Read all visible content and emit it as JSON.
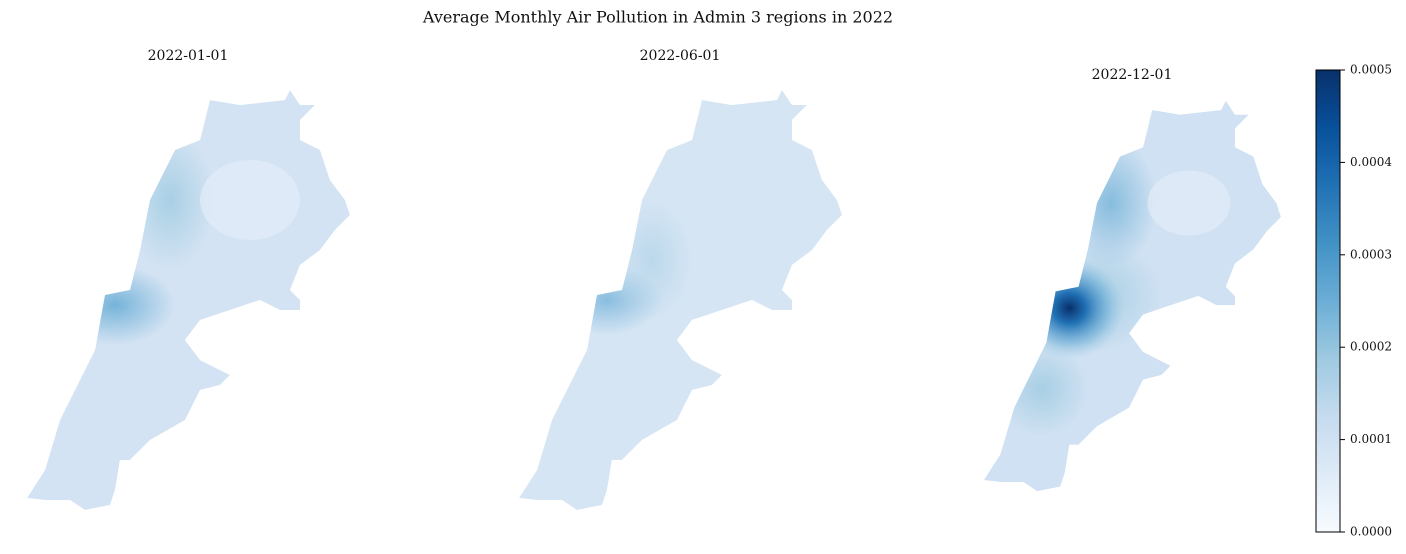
{
  "title": "Average Monthly Air Pollution in Admin 3 regions in 2022",
  "maps": [
    {
      "title": "2022-01-01"
    },
    {
      "title": "2022-06-01"
    },
    {
      "title": "2022-12-01"
    }
  ],
  "colorbar": {
    "lim": [
      0,
      0.0005
    ],
    "ticks": [
      {
        "value": 0,
        "label": "0.0000"
      },
      {
        "value": 0.0001,
        "label": "0.0001"
      },
      {
        "value": 0.0002,
        "label": "0.0002"
      },
      {
        "value": 0.0003,
        "label": "0.0003"
      },
      {
        "value": 0.0004,
        "label": "0.0004"
      },
      {
        "value": 0.0005,
        "label": "0.0005"
      }
    ],
    "colors": [
      "#f7fbff",
      "#deebf7",
      "#c6dbef",
      "#9ecae1",
      "#6baed6",
      "#4292c6",
      "#2171b5",
      "#08519c",
      "#08306b"
    ]
  }
}
